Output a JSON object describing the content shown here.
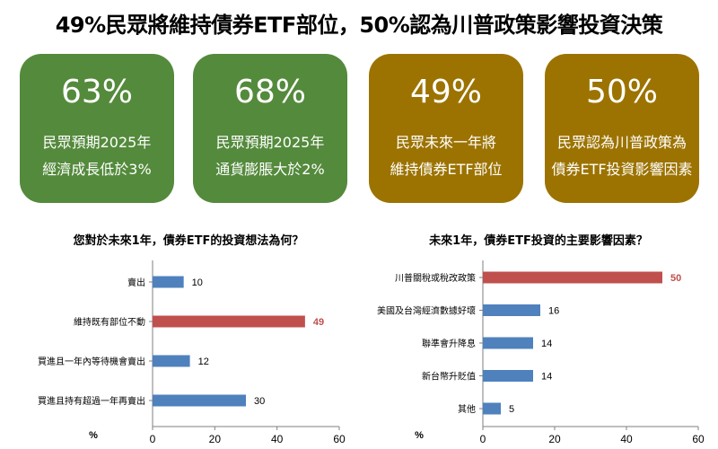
{
  "headline": "49%民眾將維持債券ETF部位，50%認為川普政策影響投資決策",
  "colors": {
    "green": "#548a3c",
    "gold": "#9c7300",
    "bar_blue": "#4f81bd",
    "bar_red": "#c0504d"
  },
  "cards": [
    {
      "pct": "63%",
      "desc": "民眾預期2025年\n經濟成長低於3%",
      "color": "green"
    },
    {
      "pct": "68%",
      "desc": "民眾預期2025年\n通貨膨脹大於2%",
      "color": "green"
    },
    {
      "pct": "49%",
      "desc": "民眾未來一年將\n維持債券ETF部位",
      "color": "gold"
    },
    {
      "pct": "50%",
      "desc": "民眾認為川普政策為\n債券ETF投資影響因素",
      "color": "gold"
    }
  ],
  "chart_data": [
    {
      "type": "bar",
      "orientation": "horizontal",
      "title": "您對於未來1年，債券ETF的投資想法為何？",
      "xlabel": "%",
      "categories": [
        "賣出",
        "維持既有部位不動",
        "買進且一年內等待機會賣出",
        "買進且持有超過一年再賣出"
      ],
      "values": [
        10,
        49,
        12,
        30
      ],
      "highlight_index": 1,
      "xlim": [
        0,
        60
      ],
      "xticks": [
        0,
        20,
        40,
        60
      ]
    },
    {
      "type": "bar",
      "orientation": "horizontal",
      "title": "未來1年，債券ETF投資的主要影響因素？",
      "xlabel": "%",
      "categories": [
        "川普關稅或稅改政策",
        "美國及台灣經濟數據好壞",
        "聯準會升降息",
        "新台幣升貶值",
        "其他"
      ],
      "values": [
        50,
        16,
        14,
        14,
        5
      ],
      "highlight_index": 0,
      "xlim": [
        0,
        60
      ],
      "xticks": [
        0,
        20,
        40,
        60
      ]
    }
  ]
}
